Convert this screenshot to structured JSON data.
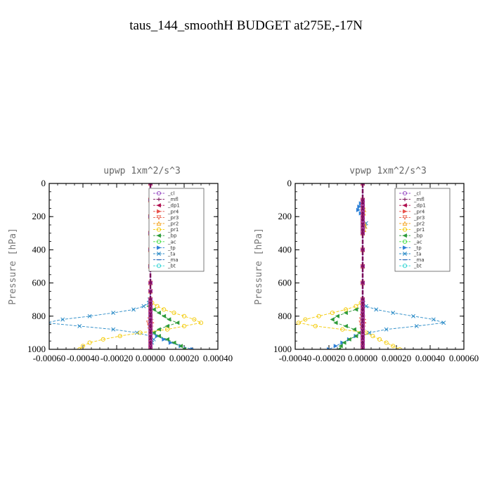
{
  "figure": {
    "title": "taus_144_smoothH  BUDGET at275E,-17N"
  },
  "chart_data": [
    {
      "type": "line",
      "title": "upwp   1xm^2/s^3",
      "ylabel": "Pressure [hPa]",
      "xlabel": "",
      "xlim": [
        -0.0006,
        0.0004
      ],
      "ylim": [
        1000,
        0
      ],
      "xticks": [
        -0.0006,
        -0.0004,
        -0.0002,
        0.0,
        0.0002,
        0.0004
      ],
      "xtick_labels": [
        "-0.00060",
        "-0.00040",
        "-0.00020",
        "0.00000",
        "0.00020",
        "0.00040"
      ],
      "yticks": [
        0,
        200,
        400,
        600,
        800,
        1000
      ],
      "legend_position": "upper-right",
      "y": [
        0,
        100,
        200,
        300,
        400,
        500,
        600,
        650,
        700,
        720,
        740,
        760,
        780,
        800,
        820,
        840,
        860,
        880,
        900,
        920,
        940,
        960,
        980,
        1000
      ],
      "series": [
        {
          "name": "_cl",
          "color": "#9a4fc4",
          "marker": "o",
          "values": [
            0,
            0,
            0,
            0,
            0,
            0,
            0,
            0,
            0,
            0,
            0,
            0,
            0,
            0,
            0,
            0,
            0,
            0,
            0,
            0,
            0,
            0,
            0,
            0
          ]
        },
        {
          "name": "_mfl",
          "color": "#7a0f5a",
          "marker": "+",
          "values": [
            0,
            0,
            0,
            0,
            0,
            0,
            0,
            0,
            0,
            0,
            0,
            0,
            0,
            0,
            0,
            0,
            0,
            0,
            0,
            0,
            0,
            0,
            0,
            0
          ]
        },
        {
          "name": "_dp1",
          "color": "#b0104f",
          "marker": "<",
          "values": [
            0,
            0,
            0,
            0,
            0,
            0,
            0,
            0,
            0,
            0,
            0,
            0,
            0,
            0,
            0,
            0,
            0,
            0,
            0,
            0,
            0,
            0,
            0,
            0
          ]
        },
        {
          "name": "_pr4",
          "color": "#e8504a",
          "marker": ">",
          "values": [
            0,
            0,
            0,
            0,
            0,
            0,
            0,
            0,
            0,
            0,
            0,
            0,
            0,
            4e-06,
            6e-06,
            1e-05,
            6e-06,
            4e-06,
            0,
            0,
            0,
            0,
            0,
            0
          ]
        },
        {
          "name": "_pr3",
          "color": "#e8604a",
          "marker": "v",
          "values": [
            0,
            0,
            0,
            0,
            0,
            0,
            0,
            0,
            0,
            0,
            0,
            0,
            0,
            0,
            -4e-06,
            -1.2e-05,
            -6e-06,
            -4e-06,
            0,
            0,
            0,
            0,
            0,
            0
          ]
        },
        {
          "name": "_pr2",
          "color": "#f5a623",
          "marker": "^",
          "values": [
            0,
            0,
            0,
            0,
            0,
            0,
            0,
            0,
            0,
            0,
            0,
            0,
            0,
            0,
            0,
            0,
            0,
            0,
            0,
            0,
            0,
            0,
            0,
            0
          ]
        },
        {
          "name": "_pr1",
          "color": "#f3c900",
          "marker": "o",
          "values": [
            0,
            0,
            0,
            0,
            0,
            0,
            0,
            0,
            0,
            1e-05,
            4e-05,
            8e-05,
            0.00014,
            0.0002,
            0.00026,
            0.0003,
            0.0002,
            0.0001,
            -6e-05,
            -0.00018,
            -0.00028,
            -0.00036,
            -0.0004,
            -0.00042
          ]
        },
        {
          "name": "_bp",
          "color": "#2e9b3a",
          "marker": "<",
          "values": [
            0,
            0,
            0,
            0,
            0,
            0,
            0,
            0,
            0,
            0,
            -1e-05,
            2e-05,
            5e-05,
            8e-05,
            0.00011,
            0.00016,
            0.0001,
            5e-05,
            2e-05,
            5e-05,
            0.0001,
            0.00014,
            0.00018,
            0.0002
          ]
        },
        {
          "name": "_ac",
          "color": "#44dd44",
          "marker": "o",
          "values": [
            0,
            0,
            0,
            0,
            0,
            0,
            0,
            0,
            0,
            0,
            0,
            0,
            0,
            0,
            0,
            0,
            0,
            0,
            0,
            0,
            0,
            0,
            0,
            0
          ]
        },
        {
          "name": "_tp",
          "color": "#2d7fd6",
          "marker": ">",
          "values": [
            0,
            0,
            0,
            0,
            0,
            0,
            0,
            0,
            0,
            0,
            0,
            0,
            0,
            0,
            0,
            0,
            0,
            0,
            0,
            4e-05,
            8e-05,
            0.00012,
            0.00018,
            0.00025
          ]
        },
        {
          "name": "_ta",
          "color": "#2a8bc7",
          "marker": "x",
          "values": [
            0,
            0,
            0,
            0,
            0,
            0,
            0,
            0,
            -5e-06,
            -1e-05,
            -4e-05,
            -0.0001,
            -0.00022,
            -0.00036,
            -0.00052,
            -0.00062,
            -0.00042,
            -0.00022,
            -8e-05,
            0,
            2e-05,
            1e-05,
            0,
            0
          ]
        },
        {
          "name": "_ma",
          "color": "#1a5fb4",
          "marker": "-",
          "values": [
            0,
            0,
            0,
            0,
            0,
            0,
            0,
            0,
            0,
            0,
            0,
            0,
            0,
            0,
            0,
            0,
            0,
            0,
            0,
            0,
            0,
            0,
            0,
            0
          ]
        },
        {
          "name": "_bt",
          "color": "#2fd3d3",
          "marker": "o",
          "values": [
            0,
            0,
            0,
            0,
            0,
            0,
            0,
            0,
            0,
            0,
            0,
            0,
            0,
            0,
            0,
            0,
            0,
            0,
            0,
            0,
            0,
            0,
            0,
            0
          ]
        }
      ]
    },
    {
      "type": "line",
      "title": "vpwp   1xm^2/s^3",
      "ylabel": "Pressure [hPa]",
      "xlabel": "",
      "xlim": [
        -0.0004,
        0.0006
      ],
      "ylim": [
        1000,
        0
      ],
      "xticks": [
        -0.0004,
        -0.0002,
        0.0,
        0.0002,
        0.0004,
        0.0006
      ],
      "xtick_labels": [
        "-0.00040",
        "-0.00020",
        "0.00000",
        "0.00020",
        "0.00040",
        "0.00060"
      ],
      "yticks": [
        0,
        200,
        400,
        600,
        800,
        1000
      ],
      "legend_position": "upper-right",
      "y": [
        0,
        100,
        120,
        140,
        160,
        180,
        200,
        220,
        240,
        260,
        280,
        300,
        400,
        500,
        600,
        700,
        720,
        740,
        760,
        780,
        800,
        820,
        840,
        860,
        880,
        900,
        920,
        940,
        960,
        980,
        1000
      ],
      "series": [
        {
          "name": "_cl",
          "color": "#9a4fc4",
          "marker": "o",
          "values": [
            0,
            0,
            0,
            0,
            0,
            0,
            0,
            0,
            0,
            0,
            0,
            0,
            0,
            0,
            0,
            0,
            0,
            0,
            0,
            0,
            0,
            0,
            0,
            0,
            0,
            0,
            0,
            0,
            0,
            0,
            0
          ]
        },
        {
          "name": "_mfl",
          "color": "#7a0f5a",
          "marker": "+",
          "values": [
            0,
            0,
            0,
            0,
            0,
            0,
            0,
            0,
            0,
            0,
            0,
            0,
            0,
            0,
            0,
            0,
            0,
            0,
            0,
            0,
            0,
            0,
            0,
            0,
            0,
            0,
            0,
            0,
            0,
            0,
            0
          ]
        },
        {
          "name": "_dp1",
          "color": "#b0104f",
          "marker": "<",
          "values": [
            0,
            0,
            0,
            0,
            0,
            0,
            0,
            0,
            0,
            0,
            0,
            0,
            0,
            0,
            0,
            0,
            0,
            0,
            0,
            0,
            0,
            0,
            0,
            0,
            0,
            0,
            0,
            0,
            0,
            0,
            0
          ]
        },
        {
          "name": "_pr4",
          "color": "#e8504a",
          "marker": ">",
          "values": [
            0,
            0,
            0,
            0,
            0,
            0,
            0,
            0,
            0,
            0,
            0,
            0,
            0,
            0,
            0,
            0,
            0,
            0,
            0,
            0,
            4e-06,
            8e-06,
            1e-05,
            6e-06,
            4e-06,
            0,
            0,
            0,
            0,
            0,
            0
          ]
        },
        {
          "name": "_pr3",
          "color": "#e8604a",
          "marker": "v",
          "values": [
            0,
            0,
            0,
            0,
            0,
            0,
            0,
            0,
            0,
            0,
            0,
            0,
            0,
            0,
            0,
            0,
            0,
            0,
            0,
            0,
            -4e-06,
            -8e-06,
            -1e-05,
            -6e-06,
            -4e-06,
            0,
            0,
            0,
            0,
            0,
            0
          ]
        },
        {
          "name": "_pr2",
          "color": "#f5a623",
          "marker": "^",
          "values": [
            0,
            0,
            0,
            4e-06,
            8e-06,
            6e-06,
            0,
            0,
            1e-05,
            1.4e-05,
            8e-06,
            0,
            0,
            0,
            0,
            0,
            0,
            0,
            0,
            0,
            0,
            0,
            0,
            0,
            0,
            0,
            0,
            0,
            0,
            0,
            0
          ]
        },
        {
          "name": "_pr1",
          "color": "#f3c900",
          "marker": "o",
          "values": [
            0,
            0,
            0,
            0,
            0,
            0,
            0,
            0,
            0,
            0,
            0,
            0,
            0,
            0,
            0,
            0,
            -1e-05,
            -4e-05,
            -0.0001,
            -0.00018,
            -0.00026,
            -0.00034,
            -0.00038,
            -0.00028,
            -0.00012,
            2e-05,
            6e-05,
            0.0001,
            0.00014,
            0.00018,
            0.00022
          ]
        },
        {
          "name": "_bp",
          "color": "#2e9b3a",
          "marker": "<",
          "values": [
            0,
            0,
            0,
            0,
            0,
            0,
            0,
            0,
            0,
            0,
            0,
            0,
            0,
            0,
            0,
            0,
            0,
            0,
            -4e-05,
            -0.0001,
            -0.00015,
            -0.00018,
            -0.00016,
            -0.0001,
            -5e-05,
            -2e-05,
            -4e-05,
            -8e-05,
            -0.00011,
            -0.00013,
            -0.00014
          ]
        },
        {
          "name": "_ac",
          "color": "#44dd44",
          "marker": "o",
          "values": [
            0,
            0,
            0,
            0,
            0,
            0,
            0,
            0,
            0,
            0,
            0,
            0,
            0,
            0,
            0,
            0,
            0,
            0,
            0,
            0,
            0,
            0,
            0,
            0,
            0,
            0,
            0,
            0,
            0,
            0,
            0
          ]
        },
        {
          "name": "_tp",
          "color": "#2d7fd6",
          "marker": ">",
          "values": [
            0,
            0,
            -1e-05,
            -2e-05,
            -2.6e-05,
            -1e-05,
            0,
            0,
            0,
            0,
            0,
            0,
            0,
            0,
            0,
            0,
            0,
            0,
            0,
            0,
            0,
            0,
            0,
            0,
            0,
            0,
            -4e-05,
            -8e-05,
            -0.00012,
            -0.00016,
            -0.0002
          ]
        },
        {
          "name": "_ta",
          "color": "#2a8bc7",
          "marker": "x",
          "values": [
            0,
            0,
            0,
            0,
            0,
            0,
            0,
            0,
            2e-05,
            1.4e-05,
            4e-06,
            0,
            0,
            0,
            0,
            0,
            4e-06,
            2e-05,
            8e-05,
            0.00018,
            0.0003,
            0.00042,
            0.00048,
            0.00032,
            0.00014,
            4e-05,
            0,
            0,
            0,
            0,
            0
          ]
        },
        {
          "name": "_ma",
          "color": "#1a5fb4",
          "marker": "-",
          "values": [
            0,
            0,
            0,
            0,
            0,
            0,
            0,
            0,
            0,
            0,
            0,
            0,
            0,
            0,
            0,
            0,
            0,
            0,
            0,
            0,
            0,
            0,
            0,
            0,
            0,
            0,
            0,
            0,
            0,
            0,
            0
          ]
        },
        {
          "name": "_bt",
          "color": "#2fd3d3",
          "marker": "o",
          "values": [
            0,
            0,
            0,
            0,
            0,
            0,
            0,
            0,
            0,
            0,
            0,
            0,
            0,
            0,
            0,
            0,
            0,
            0,
            0,
            0,
            0,
            0,
            0,
            0,
            0,
            0,
            0,
            0,
            0,
            0,
            0
          ]
        }
      ]
    }
  ]
}
